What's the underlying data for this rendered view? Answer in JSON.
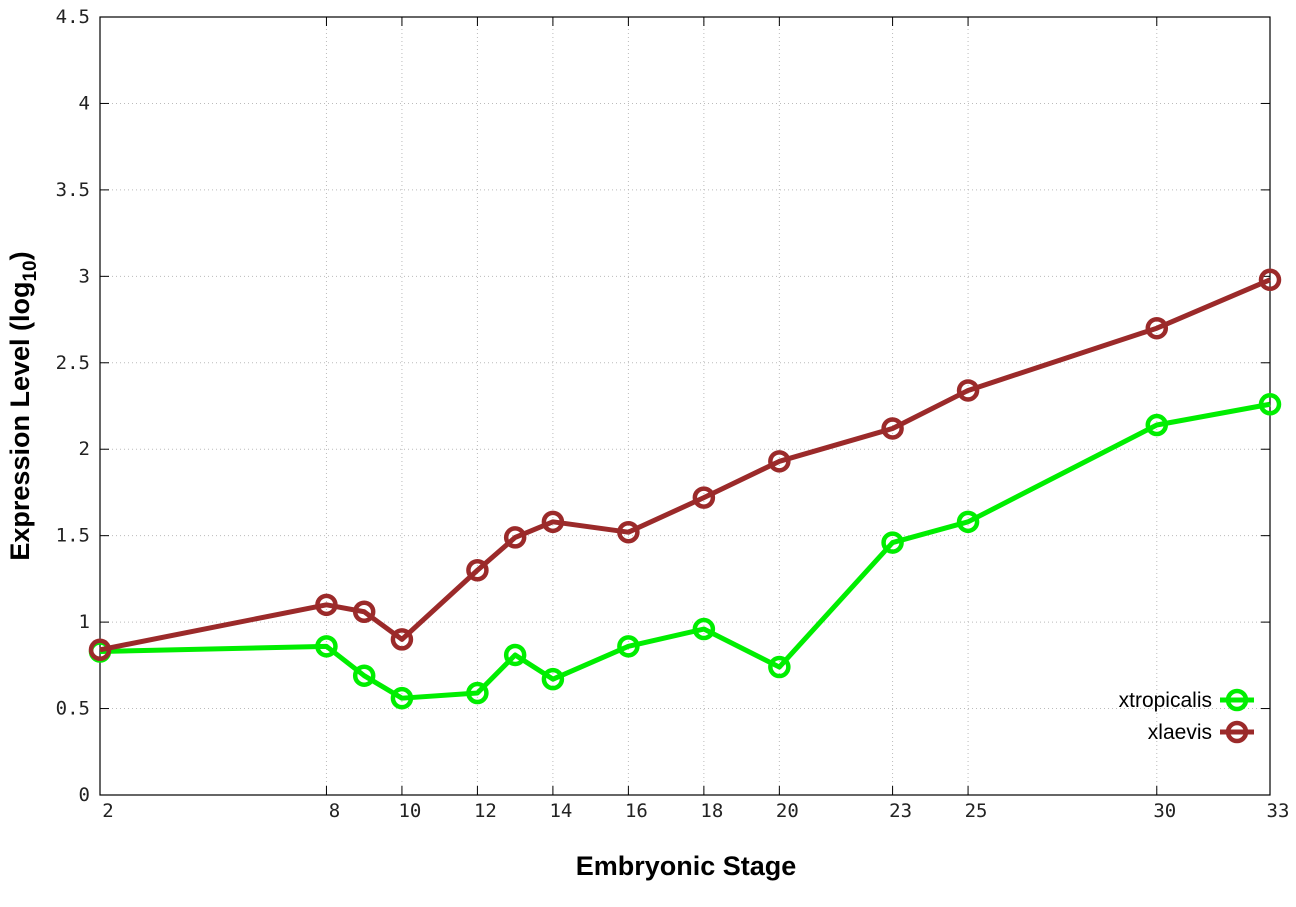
{
  "chart_data": {
    "type": "line",
    "xlabel": "Embryonic Stage",
    "ylabel_main": "Expression Level (log",
    "ylabel_sub": "10",
    "ylabel_close": ")",
    "x": [
      2,
      8,
      9,
      10,
      12,
      13,
      14,
      16,
      18,
      20,
      23,
      25,
      30,
      33
    ],
    "xticks": [
      2,
      8,
      10,
      12,
      14,
      16,
      18,
      20,
      23,
      25,
      30,
      33
    ],
    "xlim": [
      2,
      33
    ],
    "ylim": [
      0,
      4.5
    ],
    "yticks": [
      "0",
      "0.5",
      "1",
      "1.5",
      "2",
      "2.5",
      "3",
      "3.5",
      "4",
      "4.5"
    ],
    "grid": true,
    "legend_position": "bottom-right",
    "series": [
      {
        "name": "xtropicalis",
        "color": "#00ee00",
        "values": [
          0.83,
          0.86,
          0.69,
          0.56,
          0.59,
          0.81,
          0.67,
          0.86,
          0.96,
          0.74,
          1.46,
          1.58,
          2.14,
          2.26
        ]
      },
      {
        "name": "xlaevis",
        "color": "#9b2a2a",
        "values": [
          0.84,
          1.1,
          1.06,
          0.9,
          1.3,
          1.49,
          1.58,
          1.52,
          1.72,
          1.93,
          2.12,
          2.34,
          2.7,
          2.98
        ]
      }
    ]
  }
}
